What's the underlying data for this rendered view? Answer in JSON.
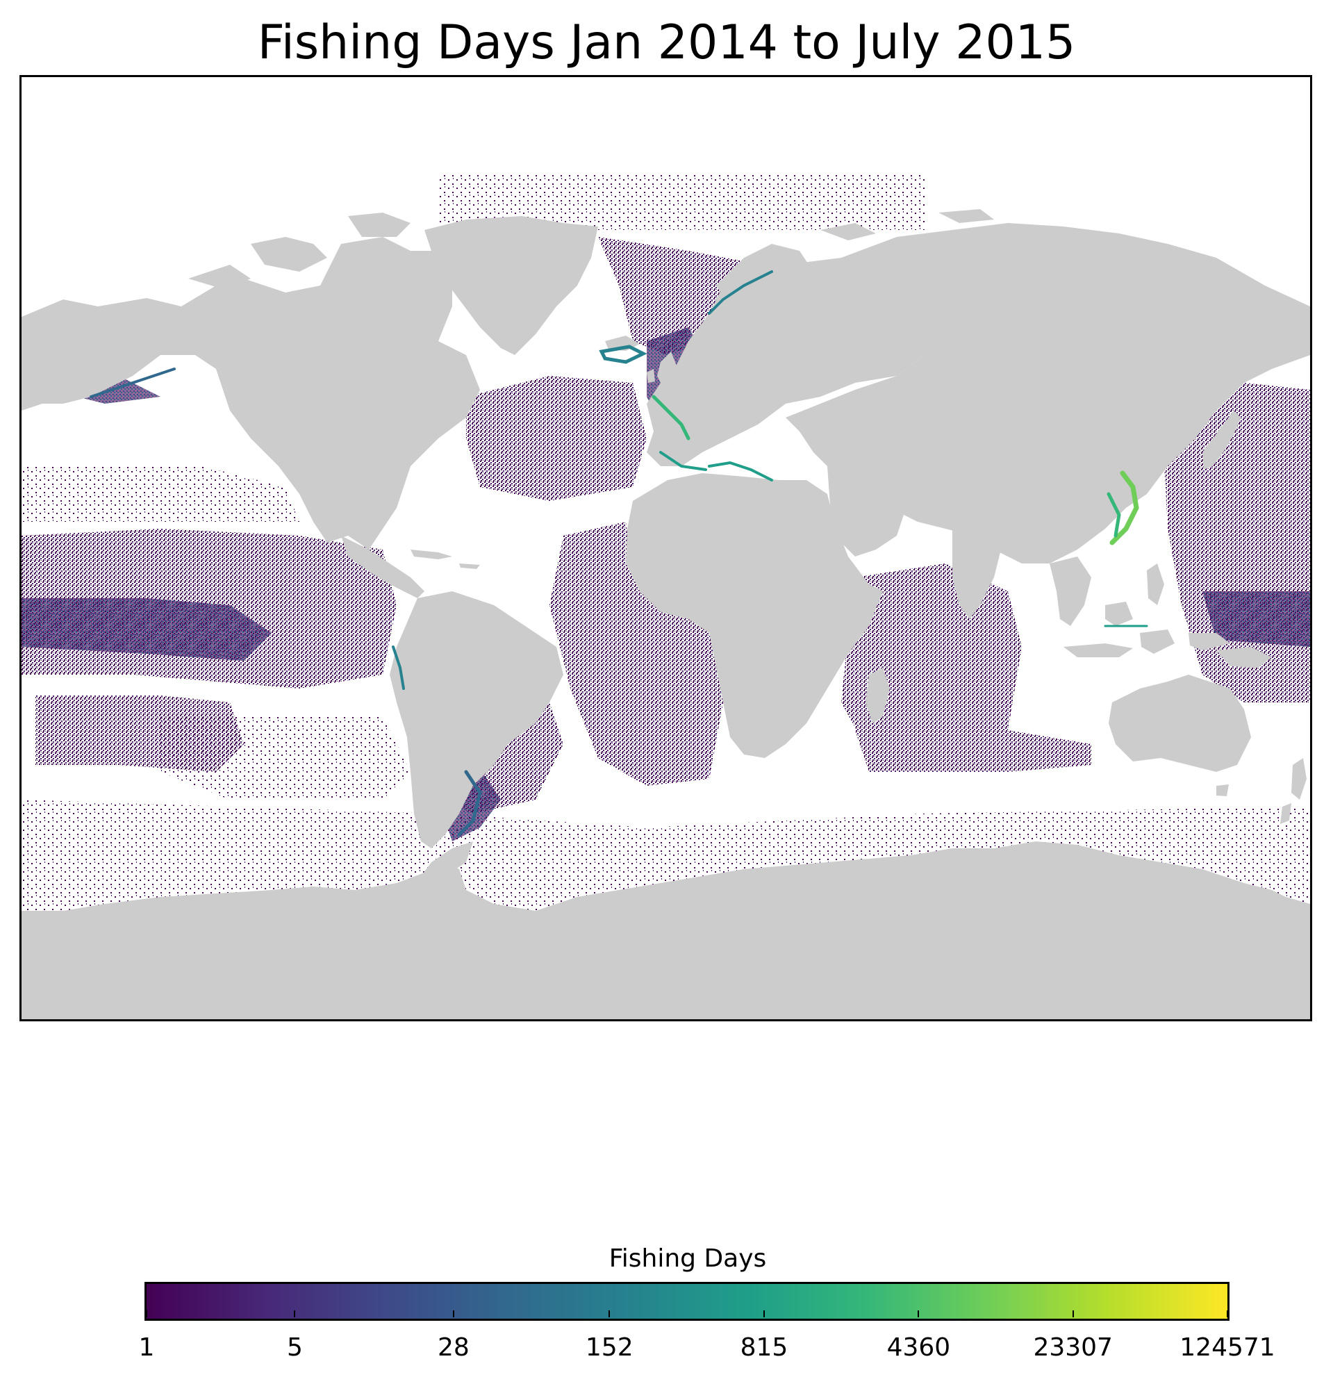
{
  "title": "Fishing Days Jan 2014 to July 2015",
  "map": {
    "projection": "equirectangular",
    "land_color": "#cccccc",
    "ocean_color": "#ffffff",
    "frame_color": "#000000",
    "hotspots_note_free": true
  },
  "colorbar": {
    "label": "Fishing Days",
    "scale": "log",
    "colormap": "viridis",
    "ticks": [
      "1",
      "5",
      "28",
      "152",
      "815",
      "4360",
      "23307",
      "124571"
    ],
    "tick_values": [
      1,
      5,
      28,
      152,
      815,
      4360,
      23307,
      124571
    ],
    "stops": [
      "#440154",
      "#482878",
      "#3e4a89",
      "#31688e",
      "#26828e",
      "#1f9e89",
      "#35b779",
      "#6ece58",
      "#b5de2b",
      "#fde725"
    ]
  }
}
